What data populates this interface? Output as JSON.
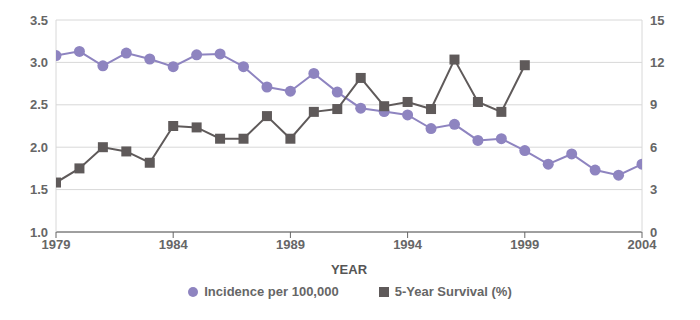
{
  "chart_data": {
    "type": "line",
    "x_label": "YEAR",
    "x": [
      1979,
      1980,
      1981,
      1982,
      1983,
      1984,
      1985,
      1986,
      1987,
      1988,
      1989,
      1990,
      1991,
      1992,
      1993,
      1994,
      1995,
      1996,
      1997,
      1998,
      1999,
      2000,
      2001,
      2002,
      2003,
      2004
    ],
    "xlim": [
      1979,
      2004
    ],
    "xticks": [
      1979,
      1984,
      1989,
      1994,
      1999,
      2004
    ],
    "ylim": [
      1,
      3.5
    ],
    "yticks": [
      {
        "value": 1,
        "label": "1.0"
      },
      1.5,
      {
        "value": 2,
        "label": "2.0"
      },
      2.5,
      {
        "value": 3,
        "label": "3.0"
      },
      3.5
    ],
    "y2lim": [
      0,
      15
    ],
    "y2ticks": [
      0,
      3,
      6,
      9,
      12,
      15
    ],
    "grid": true,
    "legend": "bottom",
    "series": [
      {
        "name": "Incidence per 100,000",
        "color": "#8e84c0",
        "marker": "circle",
        "values": [
          3.08,
          3.13,
          2.96,
          3.11,
          3.04,
          2.95,
          3.09,
          3.1,
          2.95,
          2.71,
          2.66,
          2.87,
          2.65,
          2.46,
          2.42,
          2.38,
          2.22,
          2.27,
          2.08,
          2.1,
          1.96,
          1.8,
          1.92,
          1.73,
          1.67,
          1.8
        ]
      },
      {
        "name": "5-Year Survival (%)",
        "color": "#5f5a5a",
        "marker": "square",
        "axis": "y2",
        "values": [
          3.5,
          4.5,
          6.0,
          5.7,
          4.9,
          7.5,
          7.4,
          6.6,
          6.6,
          8.2,
          6.6,
          8.5,
          8.7,
          10.9,
          8.9,
          9.2,
          8.7,
          12.2,
          9.2,
          8.5,
          11.8,
          null,
          null,
          null,
          null,
          null
        ]
      }
    ]
  }
}
